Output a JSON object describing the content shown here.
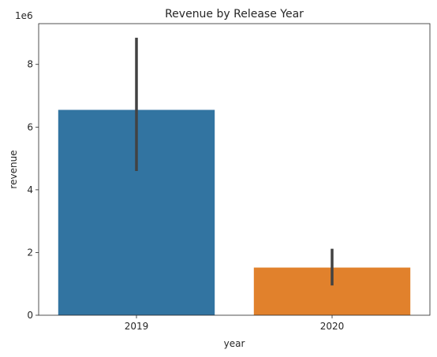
{
  "chart_data": {
    "type": "bar",
    "title": "Revenue by Release Year",
    "xlabel": "year",
    "ylabel": "revenue",
    "y_scale_label": "1e6",
    "categories": [
      "2019",
      "2020"
    ],
    "values": [
      6.55,
      1.52
    ],
    "error_low": [
      4.6,
      0.95
    ],
    "error_high": [
      8.85,
      2.12
    ],
    "colors": [
      "#3274a1",
      "#e1812c"
    ],
    "error_color": "#424242",
    "ylim": [
      0,
      9.3
    ],
    "yticks": [
      0,
      2,
      4,
      6,
      8
    ],
    "ytick_labels": [
      "0",
      "2",
      "4",
      "6",
      "8"
    ],
    "grid": false,
    "legend": "none"
  }
}
